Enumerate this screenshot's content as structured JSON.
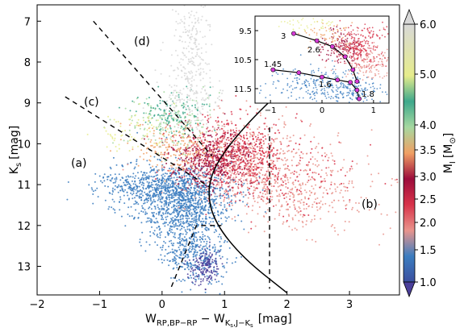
{
  "chart_data": {
    "type": "scatter",
    "title": "",
    "xlabel_main": "W",
    "xlabel_sub1": "RP,BP−RP",
    "xlabel_mid": " − W",
    "xlabel_sub2": "K",
    "xlabel_sub2b": "s",
    "xlabel_sub3": ",J−K",
    "xlabel_sub3b": "s",
    "xlabel_unit": "[mag]",
    "ylabel_main": "K",
    "ylabel_sub": "s",
    "ylabel_unit": "[mag]",
    "xlim": [
      -2,
      3.8
    ],
    "ylim": [
      13.7,
      6.6
    ],
    "x_ticks": [
      "−2",
      "−1",
      "0",
      "1",
      "2",
      "3"
    ],
    "y_ticks": [
      "7",
      "8",
      "9",
      "10",
      "11",
      "12",
      "13"
    ],
    "colorbar": {
      "label_main": "M",
      "label_sub": "I",
      "label_unit": "[M",
      "label_unit_sub": "⊙",
      "label_close": "]",
      "range": [
        1.0,
        6.0
      ],
      "ticks": [
        "1.0",
        "1.5",
        "2.0",
        "2.5",
        "3.0",
        "3.5",
        "4.0",
        "5.0",
        "6.0"
      ],
      "colors": [
        "#3b7dc0",
        "#e9948c",
        "#d8334a",
        "#9c0d3c",
        "#f0a064",
        "#a6d8a0",
        "#3ea88c",
        "#e6ec8c",
        "#d8d8d8"
      ]
    },
    "region_labels": [
      "(a)",
      "(b)",
      "(c)",
      "(d)"
    ],
    "inset": {
      "x_ticks": [
        "−1",
        "0",
        "1"
      ],
      "y_ticks": [
        "9.5",
        "10.5",
        "11.5"
      ],
      "xlim": [
        -1.3,
        1.3
      ],
      "ylim": [
        12.0,
        9.0
      ],
      "track_upper": {
        "mass_labels": [
          "3",
          "2.6"
        ],
        "x": [
          -0.55,
          -0.1,
          0.2,
          0.45,
          0.6,
          0.68
        ],
        "y": [
          9.6,
          9.85,
          10.05,
          10.4,
          10.85,
          11.25
        ]
      },
      "track_lower": {
        "mass_labels": [
          "1.45",
          "1.6",
          "1.8"
        ],
        "x": [
          -0.95,
          -0.45,
          0.0,
          0.3,
          0.55,
          0.68,
          0.72
        ],
        "y": [
          10.85,
          10.95,
          11.1,
          11.2,
          11.28,
          11.55,
          11.85
        ]
      }
    },
    "boundaries": {
      "dashed_d": {
        "x": [
          -1.1,
          0.8
        ],
        "y": [
          7.0,
          10.3
        ]
      },
      "dashed_c": {
        "x": [
          -1.55,
          0.75
        ],
        "y": [
          8.85,
          11.05
        ]
      },
      "dashed_a": {
        "x": [
          0.15,
          0.55,
          0.95
        ],
        "y": [
          13.5,
          12.0,
          12.0
        ]
      },
      "vertical": {
        "x": [
          1.72,
          1.72
        ],
        "y": [
          9.6,
          13.55
        ]
      },
      "curve": {
        "x": [
          2.0,
          1.3,
          0.85,
          0.72,
          0.85,
          1.3,
          2.0
        ],
        "y": [
          8.55,
          9.6,
          10.5,
          11.2,
          11.95,
          12.8,
          13.65
        ]
      }
    }
  }
}
